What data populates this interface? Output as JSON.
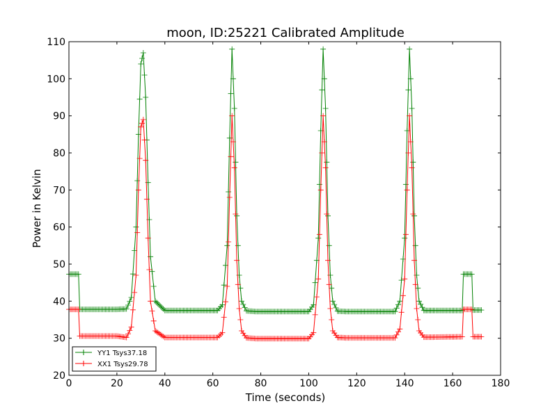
{
  "chart_data": {
    "type": "line",
    "title": "moon, ID:25221 Calibrated Amplitude",
    "xlabel": "Time (seconds)",
    "ylabel": "Power in Kelvin",
    "xlim": [
      0,
      180
    ],
    "ylim": [
      20,
      110
    ],
    "x_ticks": [
      0,
      20,
      40,
      60,
      80,
      100,
      120,
      140,
      160,
      180
    ],
    "y_ticks": [
      20,
      30,
      40,
      50,
      60,
      70,
      80,
      90,
      100,
      110
    ],
    "grid": false,
    "legend_position": "lower-left",
    "marker": "+",
    "series": [
      {
        "name": "YY1 Tsys37.18",
        "color": "#008000",
        "off_source_level": 37.5,
        "on_source_peak": 108,
        "x": [
          0,
          4,
          4.5,
          20,
          24,
          26,
          28,
          29,
          30,
          31,
          32,
          33,
          34,
          36,
          40,
          62,
          64,
          66,
          67,
          68,
          69,
          70,
          71,
          72,
          74,
          78,
          100,
          102,
          104,
          105,
          106,
          107,
          108,
          109,
          110,
          112,
          116,
          136,
          138,
          140,
          141,
          142,
          143,
          144,
          145,
          146,
          148,
          152,
          164,
          164.5,
          168,
          168.5,
          172
        ],
        "y": [
          47.3,
          47.3,
          37.8,
          37.8,
          37.9,
          41,
          60,
          85,
          104,
          107,
          95,
          72,
          52,
          40,
          37.5,
          37.5,
          39,
          55,
          84,
          108,
          92,
          63,
          47,
          40,
          37.4,
          37.2,
          37.2,
          39,
          57,
          86,
          108,
          92,
          63,
          47,
          40,
          37.3,
          37.2,
          37.2,
          40,
          57,
          86,
          108,
          92,
          63,
          47,
          40,
          37.5,
          37.5,
          37.5,
          47.3,
          47.3,
          37.6,
          37.6
        ]
      },
      {
        "name": "XX1 Tsys29.78",
        "color": "#ff0000",
        "off_source_level": 30.3,
        "on_source_peak": 90,
        "x": [
          0,
          4,
          4.5,
          20,
          24,
          26,
          28,
          29,
          30,
          31,
          32,
          33,
          34,
          36,
          40,
          62,
          64,
          66,
          67,
          68,
          69,
          70,
          71,
          72,
          74,
          78,
          100,
          102,
          104,
          105,
          106,
          107,
          108,
          109,
          110,
          112,
          116,
          136,
          138,
          140,
          141,
          142,
          143,
          144,
          145,
          146,
          148,
          152,
          164,
          164.5,
          168,
          168.5,
          172
        ],
        "y": [
          37.8,
          37.8,
          30.6,
          30.6,
          30.2,
          33,
          47,
          70,
          87,
          89,
          78,
          57,
          40,
          32,
          30.2,
          30.2,
          31.5,
          44,
          68,
          90,
          76,
          51,
          38,
          32,
          30.1,
          29.9,
          29.9,
          31.5,
          46,
          70,
          90,
          76,
          51,
          38,
          32,
          30.2,
          30.1,
          30.1,
          32.5,
          46,
          70,
          90,
          76,
          51,
          38,
          32,
          30.3,
          30.3,
          30.4,
          37.8,
          37.8,
          30.4,
          30.4
        ]
      }
    ]
  }
}
